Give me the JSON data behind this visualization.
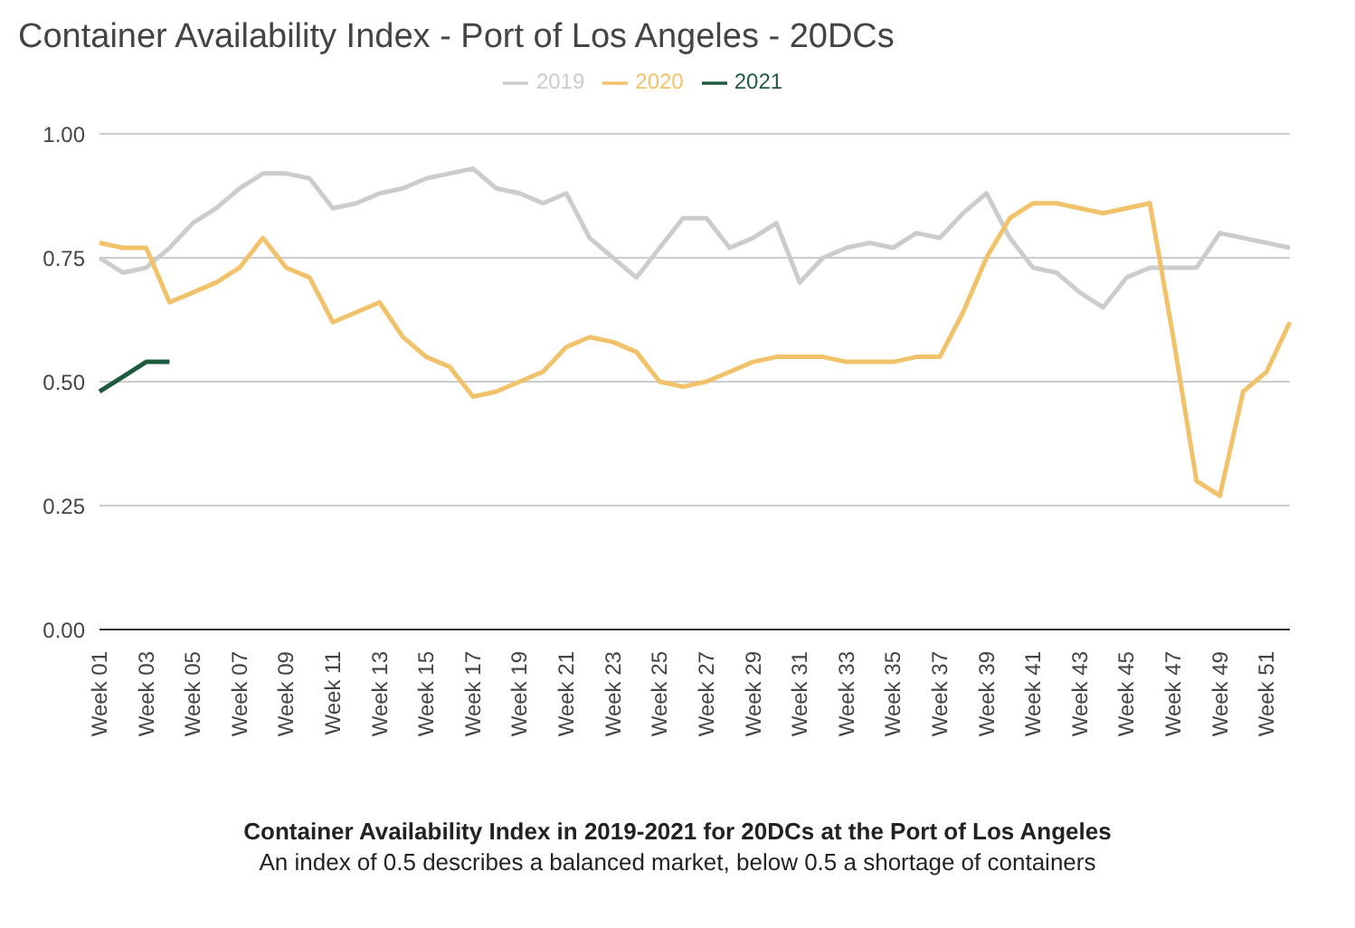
{
  "chart_data": {
    "type": "line",
    "title": "Container Availability Index - Port of Los Angeles - 20DCs",
    "categories": [
      "Week 01",
      null,
      "Week 03",
      null,
      "Week 05",
      null,
      "Week 07",
      null,
      "Week 09",
      null,
      "Week 11",
      null,
      "Week 13",
      null,
      "Week 15",
      null,
      "Week 17",
      null,
      "Week 19",
      null,
      "Week 21",
      null,
      "Week 23",
      null,
      "Week 25",
      null,
      "Week 27",
      null,
      "Week 29",
      null,
      "Week 31",
      null,
      "Week 33",
      null,
      "Week 35",
      null,
      "Week 37",
      null,
      "Week 39",
      null,
      "Week 41",
      null,
      "Week 43",
      null,
      "Week 45",
      null,
      "Week 47",
      null,
      "Week 49",
      null,
      "Week 51",
      null
    ],
    "series": [
      {
        "name": "2019",
        "color": "#cccccc",
        "values": [
          0.75,
          0.72,
          0.73,
          0.77,
          0.82,
          0.85,
          0.89,
          0.92,
          0.92,
          0.91,
          0.85,
          0.86,
          0.88,
          0.89,
          0.91,
          0.92,
          0.93,
          0.89,
          0.88,
          0.86,
          0.88,
          0.79,
          0.75,
          0.71,
          0.77,
          0.83,
          0.83,
          0.77,
          0.79,
          0.82,
          0.7,
          0.75,
          0.77,
          0.78,
          0.77,
          0.8,
          0.79,
          0.84,
          0.88,
          0.79,
          0.73,
          0.72,
          0.68,
          0.65,
          0.71,
          0.73,
          0.73,
          0.73,
          0.8,
          0.79,
          0.78,
          0.77
        ]
      },
      {
        "name": "2020",
        "color": "#f1c26a",
        "values": [
          0.78,
          0.77,
          0.77,
          0.66,
          0.68,
          0.7,
          0.73,
          0.79,
          0.73,
          0.71,
          0.62,
          0.64,
          0.66,
          0.59,
          0.55,
          0.53,
          0.47,
          0.48,
          0.5,
          0.52,
          0.57,
          0.59,
          0.58,
          0.56,
          0.5,
          0.49,
          0.5,
          0.52,
          0.54,
          0.55,
          0.55,
          0.55,
          0.54,
          0.54,
          0.54,
          0.55,
          0.55,
          0.64,
          0.75,
          0.83,
          0.86,
          0.86,
          0.85,
          0.84,
          0.85,
          0.86,
          0.59,
          0.3,
          0.27,
          0.48,
          0.52,
          0.62
        ]
      },
      {
        "name": "2021",
        "color": "#1e5b3e",
        "values": [
          0.48,
          0.51,
          0.54,
          0.54,
          null,
          null,
          null,
          null,
          null,
          null,
          null,
          null,
          null,
          null,
          null,
          null,
          null,
          null,
          null,
          null,
          null,
          null,
          null,
          null,
          null,
          null,
          null,
          null,
          null,
          null,
          null,
          null,
          null,
          null,
          null,
          null,
          null,
          null,
          null,
          null,
          null,
          null,
          null,
          null,
          null,
          null,
          null,
          null,
          null,
          null,
          null,
          null
        ]
      }
    ],
    "ylim": [
      0,
      1
    ],
    "yticks": [
      {
        "value": 0,
        "label": "0.00"
      },
      {
        "value": 0.25,
        "label": "0.25"
      },
      {
        "value": 0.5,
        "label": "0.50"
      },
      {
        "value": 0.75,
        "label": "0.75"
      },
      {
        "value": 1,
        "label": "1.00"
      }
    ],
    "grid": "y",
    "legend": "top",
    "marker": "none",
    "line_style": "solid",
    "annotations": [
      "Container Availability Index in 2019-2021 for 20DCs at the Port of Los Angeles",
      "An index of 0.5 describes a balanced market, below 0.5 a shortage of containers"
    ]
  }
}
